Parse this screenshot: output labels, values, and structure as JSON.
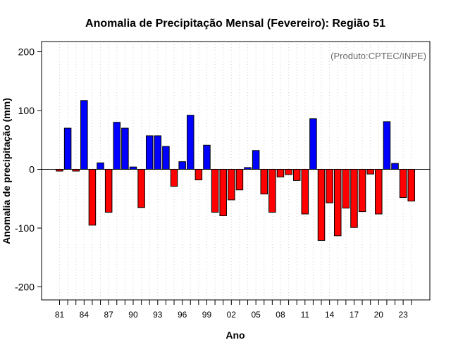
{
  "chart_data": {
    "type": "bar",
    "title": "Anomalia de Precipitação Mensal (Fevereiro): Região 51",
    "xlabel": "Ano",
    "ylabel": "Anomalia de precipitação (mm)",
    "annotation": "(Produto:CPTEC/INPE)",
    "ylim": [
      -220,
      220
    ],
    "yticks": [
      -200,
      -100,
      0,
      100,
      200
    ],
    "xtick_labels": [
      "81",
      "84",
      "87",
      "90",
      "93",
      "96",
      "99",
      "02",
      "05",
      "08",
      "11",
      "14",
      "17",
      "20",
      "23"
    ],
    "categories": [
      "1981",
      "1982",
      "1983",
      "1984",
      "1985",
      "1986",
      "1987",
      "1988",
      "1989",
      "1990",
      "1991",
      "1992",
      "1993",
      "1994",
      "1995",
      "1996",
      "1997",
      "1998",
      "1999",
      "2000",
      "2001",
      "2002",
      "2003",
      "2004",
      "2005",
      "2006",
      "2007",
      "2008",
      "2009",
      "2010",
      "2011",
      "2012",
      "2013",
      "2014",
      "2015",
      "2016",
      "2017",
      "2018",
      "2019",
      "2020",
      "2021",
      "2022",
      "2023",
      "2024"
    ],
    "values": [
      -3,
      70,
      -3,
      117,
      -95,
      11,
      -73,
      80,
      70,
      4,
      -65,
      57,
      57,
      39,
      -29,
      13,
      92,
      -18,
      41,
      -73,
      -79,
      -52,
      -35,
      3,
      32,
      -42,
      -73,
      -13,
      -9,
      -19,
      -76,
      86,
      -121,
      -57,
      -113,
      -66,
      -99,
      -72,
      -8,
      -76,
      81,
      10,
      -48,
      -54
    ],
    "colors": {
      "positive": "#0000ff",
      "negative": "#ff0000",
      "grid": "#d3d3d3",
      "axis": "#000000",
      "annotation": "#666666"
    }
  }
}
